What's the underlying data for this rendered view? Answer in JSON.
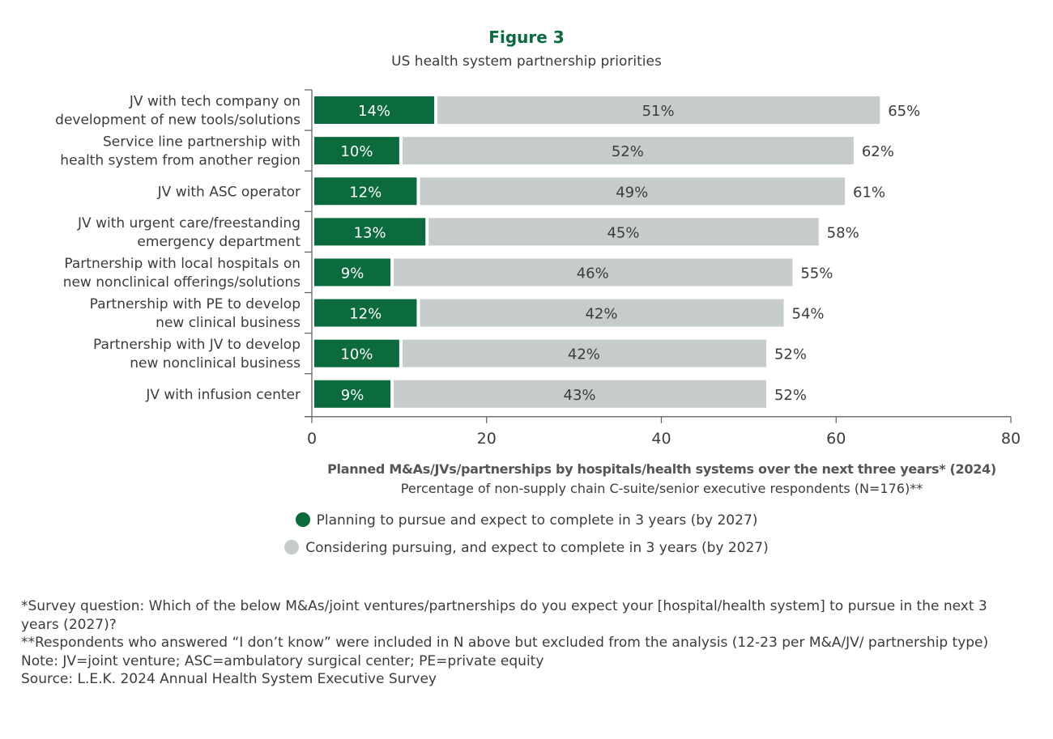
{
  "figure_label": "Figure 3",
  "chart_data": {
    "type": "bar",
    "orientation": "horizontal",
    "stacked": true,
    "title": "US health system partnership priorities",
    "xlabel": "Planned M&As/JVs/partnerships by hospitals/health systems over the next three years* (2024)",
    "xlabel_sub": "Percentage of non-supply chain C-suite/senior executive respondents (N=176)**",
    "xlim": [
      0,
      80
    ],
    "xticks": [
      0,
      20,
      40,
      60,
      80
    ],
    "grid": false,
    "legend_position": "bottom",
    "categories": [
      [
        "JV with tech company on",
        "development of new tools/solutions"
      ],
      [
        "Service line partnership with",
        "health system from another region"
      ],
      [
        "JV with ASC operator"
      ],
      [
        "JV with urgent care/freestanding",
        "emergency department"
      ],
      [
        "Partnership with local hospitals on",
        "new nonclinical offerings/solutions"
      ],
      [
        "Partnership with PE to develop",
        "new clinical business"
      ],
      [
        "Partnership with JV to develop",
        "new nonclinical business"
      ],
      [
        "JV with infusion center"
      ]
    ],
    "series": [
      {
        "name": "Planning to pursue and expect to complete in 3 years (by 2027)",
        "color": "#0b6b3d",
        "values": [
          14,
          10,
          12,
          13,
          9,
          12,
          10,
          9
        ]
      },
      {
        "name": "Considering pursuing, and expect to complete in 3 years (by 2027)",
        "color": "#c5cccb",
        "values": [
          51,
          52,
          49,
          45,
          46,
          42,
          42,
          43
        ]
      }
    ],
    "totals": [
      65,
      62,
      61,
      58,
      55,
      54,
      52,
      52
    ]
  },
  "notes": [
    "*Survey question: Which of the below M&As/joint ventures/partnerships do you expect your [hospital/health system] to pursue in the next 3 years (2027)?",
    "**Respondents who answered “I don’t know” were included in N above but excluded from the analysis (12-23 per M&A/JV/ partnership type)",
    "Note: JV=joint venture; ASC=ambulatory surgical center; PE=private equity",
    "Source: L.E.K. 2024 Annual Health System Executive Survey"
  ]
}
